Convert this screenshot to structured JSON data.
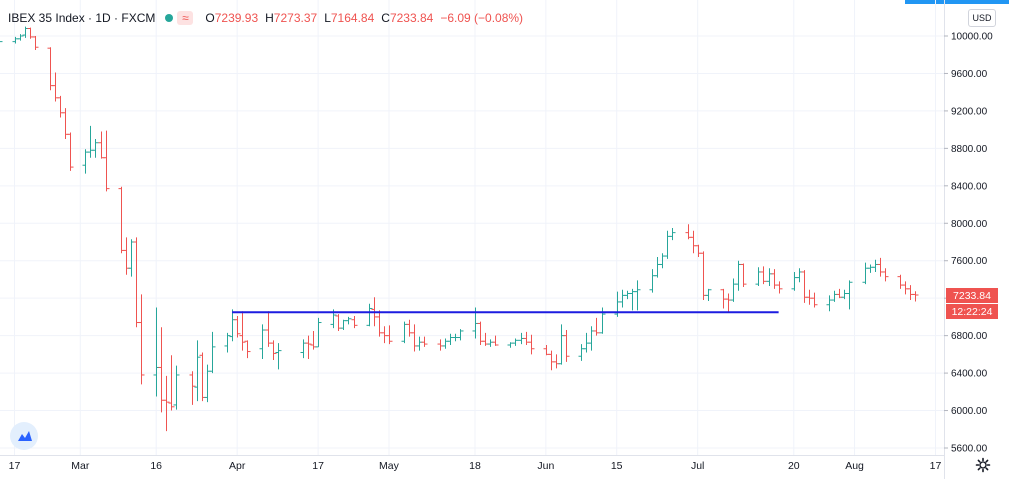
{
  "legend": {
    "symbol": "IBEX 35 Index · 1D · FXCM",
    "open_key": "O",
    "open": "7239.93",
    "high_key": "H",
    "high": "7273.37",
    "low_key": "L",
    "low": "7164.84",
    "close_key": "C",
    "close": "7233.84",
    "change": "−6.09 (−0.08%)",
    "compare_icon": "wavy-lines-icon"
  },
  "currency_button": "USD",
  "price_badge": "7233.84",
  "countdown_badge": "12:22:24",
  "colors": {
    "up": "#26a69a",
    "down": "#ef5350",
    "trendline": "#1c1ce0",
    "accent": "#2196f3",
    "badge": "#ef5350"
  },
  "chart_data": {
    "type": "ohlc",
    "y_ticks": [
      "10000.00",
      "9600.00",
      "9200.00",
      "8800.00",
      "8400.00",
      "8000.00",
      "7600.00",
      "7200.00",
      "6800.00",
      "6400.00",
      "6000.00",
      "5600.00"
    ],
    "x_ticks": [
      "17",
      "Mar",
      "16",
      "Apr",
      "17",
      "May",
      "18",
      "Jun",
      "15",
      "Jul",
      "20",
      "Aug",
      "17"
    ],
    "ylim": [
      5600,
      10000
    ],
    "grid": true,
    "horizontal_line": {
      "price": 7050,
      "from": "Mar 31",
      "to": "Jul 17"
    },
    "bars": [
      {
        "date": "Feb 14",
        "o": 9930,
        "h": 9960,
        "l": 9910,
        "c": 9940
      },
      {
        "date": "Feb 17",
        "o": 9940,
        "h": 9990,
        "l": 9920,
        "c": 9970
      },
      {
        "date": "Feb 18",
        "o": 9970,
        "h": 10020,
        "l": 9950,
        "c": 10000
      },
      {
        "date": "Feb 19",
        "o": 10010,
        "h": 10100,
        "l": 9980,
        "c": 10080
      },
      {
        "date": "Feb 20",
        "o": 10080,
        "h": 10090,
        "l": 9970,
        "c": 9990
      },
      {
        "date": "Feb 21",
        "o": 9990,
        "h": 10000,
        "l": 9850,
        "c": 9880
      },
      {
        "date": "Feb 24",
        "o": 9870,
        "h": 9880,
        "l": 9420,
        "c": 9470
      },
      {
        "date": "Feb 25",
        "o": 9470,
        "h": 9610,
        "l": 9300,
        "c": 9340
      },
      {
        "date": "Feb 26",
        "o": 9340,
        "h": 9360,
        "l": 9130,
        "c": 9180
      },
      {
        "date": "Feb 27",
        "o": 9180,
        "h": 9230,
        "l": 8900,
        "c": 8950
      },
      {
        "date": "Feb 28",
        "o": 8950,
        "h": 8970,
        "l": 8560,
        "c": 8600
      },
      {
        "date": "Mar 2",
        "o": 8620,
        "h": 8790,
        "l": 8530,
        "c": 8760
      },
      {
        "date": "Mar 3",
        "o": 8760,
        "h": 9040,
        "l": 8700,
        "c": 8780
      },
      {
        "date": "Mar 4",
        "o": 8780,
        "h": 8900,
        "l": 8700,
        "c": 8860
      },
      {
        "date": "Mar 5",
        "o": 8860,
        "h": 8980,
        "l": 8690,
        "c": 8700
      },
      {
        "date": "Mar 6",
        "o": 8700,
        "h": 8990,
        "l": 8340,
        "c": 8370
      },
      {
        "date": "Mar 9",
        "o": 8370,
        "h": 8390,
        "l": 7680,
        "c": 7710
      },
      {
        "date": "Mar 10",
        "o": 7710,
        "h": 7850,
        "l": 7450,
        "c": 7520
      },
      {
        "date": "Mar 11",
        "o": 7520,
        "h": 7830,
        "l": 7430,
        "c": 7800
      },
      {
        "date": "Mar 12",
        "o": 7800,
        "h": 7850,
        "l": 6890,
        "c": 6940
      },
      {
        "date": "Mar 13",
        "o": 6940,
        "h": 7240,
        "l": 6280,
        "c": 6380
      },
      {
        "date": "Mar 16",
        "o": 6380,
        "h": 7100,
        "l": 6150,
        "c": 6460
      },
      {
        "date": "Mar 17",
        "o": 6460,
        "h": 6890,
        "l": 5980,
        "c": 6110
      },
      {
        "date": "Mar 18",
        "o": 6110,
        "h": 6370,
        "l": 5780,
        "c": 6090
      },
      {
        "date": "Mar 19",
        "o": 6080,
        "h": 6590,
        "l": 6000,
        "c": 6040
      },
      {
        "date": "Mar 20",
        "o": 6060,
        "h": 6480,
        "l": 6010,
        "c": 6380
      },
      {
        "date": "Mar 23",
        "o": 6380,
        "h": 6420,
        "l": 6060,
        "c": 6260
      },
      {
        "date": "Mar 24",
        "o": 6250,
        "h": 6750,
        "l": 6100,
        "c": 6570
      },
      {
        "date": "Mar 25",
        "o": 6590,
        "h": 6620,
        "l": 6100,
        "c": 6140
      },
      {
        "date": "Mar 26",
        "o": 6140,
        "h": 6490,
        "l": 6090,
        "c": 6420
      },
      {
        "date": "Mar 27",
        "o": 6420,
        "h": 6840,
        "l": 6400,
        "c": 6680
      },
      {
        "date": "Mar 30",
        "o": 6690,
        "h": 6830,
        "l": 6620,
        "c": 6800
      },
      {
        "date": "Mar 31",
        "o": 6790,
        "h": 7080,
        "l": 6740,
        "c": 6970
      },
      {
        "date": "Apr 1",
        "o": 6970,
        "h": 7010,
        "l": 6780,
        "c": 6820
      },
      {
        "date": "Apr 2",
        "o": 6800,
        "h": 7060,
        "l": 6640,
        "c": 6730
      },
      {
        "date": "Apr 3",
        "o": 6740,
        "h": 6750,
        "l": 6560,
        "c": 6630
      },
      {
        "date": "Apr 6",
        "o": 6660,
        "h": 6920,
        "l": 6550,
        "c": 6860
      },
      {
        "date": "Apr 7",
        "o": 6860,
        "h": 7060,
        "l": 6680,
        "c": 6720
      },
      {
        "date": "Apr 8",
        "o": 6720,
        "h": 6750,
        "l": 6540,
        "c": 6610
      },
      {
        "date": "Apr 9",
        "o": 6620,
        "h": 6720,
        "l": 6440,
        "c": 6640
      },
      {
        "date": "Apr 14",
        "o": 6620,
        "h": 6760,
        "l": 6560,
        "c": 6720
      },
      {
        "date": "Apr 15",
        "o": 6720,
        "h": 6800,
        "l": 6550,
        "c": 6710
      },
      {
        "date": "Apr 16",
        "o": 6700,
        "h": 6850,
        "l": 6650,
        "c": 6680
      },
      {
        "date": "Apr 17",
        "o": 6680,
        "h": 6990,
        "l": 6680,
        "c": 6940
      },
      {
        "date": "Apr 20",
        "o": 6920,
        "h": 7080,
        "l": 6880,
        "c": 7020
      },
      {
        "date": "Apr 21",
        "o": 7010,
        "h": 7030,
        "l": 6850,
        "c": 6880
      },
      {
        "date": "Apr 22",
        "o": 6880,
        "h": 6970,
        "l": 6860,
        "c": 6960
      },
      {
        "date": "Apr 23",
        "o": 6960,
        "h": 7000,
        "l": 6920,
        "c": 6980
      },
      {
        "date": "Apr 24",
        "o": 6970,
        "h": 7010,
        "l": 6880,
        "c": 6910
      },
      {
        "date": "Apr 27",
        "o": 6910,
        "h": 7140,
        "l": 6900,
        "c": 7090
      },
      {
        "date": "Apr 28",
        "o": 7080,
        "h": 7210,
        "l": 6900,
        "c": 7000
      },
      {
        "date": "Apr 29",
        "o": 7000,
        "h": 7070,
        "l": 6790,
        "c": 6830
      },
      {
        "date": "Apr 30",
        "o": 6830,
        "h": 6900,
        "l": 6720,
        "c": 6800
      },
      {
        "date": "May 1",
        "o": 6800,
        "h": 6910,
        "l": 6710,
        "c": 6740
      },
      {
        "date": "May 4",
        "o": 6740,
        "h": 6950,
        "l": 6720,
        "c": 6920
      },
      {
        "date": "May 5",
        "o": 6920,
        "h": 6970,
        "l": 6790,
        "c": 6830
      },
      {
        "date": "May 6",
        "o": 6830,
        "h": 6920,
        "l": 6630,
        "c": 6690
      },
      {
        "date": "May 7",
        "o": 6690,
        "h": 6790,
        "l": 6640,
        "c": 6730
      },
      {
        "date": "May 8",
        "o": 6730,
        "h": 6790,
        "l": 6680,
        "c": 6710
      },
      {
        "date": "May 11",
        "o": 6710,
        "h": 6760,
        "l": 6640,
        "c": 6690
      },
      {
        "date": "May 12",
        "o": 6690,
        "h": 6770,
        "l": 6660,
        "c": 6740
      },
      {
        "date": "May 13",
        "o": 6740,
        "h": 6820,
        "l": 6700,
        "c": 6780
      },
      {
        "date": "May 14",
        "o": 6780,
        "h": 6820,
        "l": 6740,
        "c": 6780
      },
      {
        "date": "May 15",
        "o": 6780,
        "h": 6870,
        "l": 6750,
        "c": 6850
      },
      {
        "date": "May 18",
        "o": 6850,
        "h": 7100,
        "l": 6770,
        "c": 6930
      },
      {
        "date": "May 19",
        "o": 6930,
        "h": 6950,
        "l": 6700,
        "c": 6740
      },
      {
        "date": "May 20",
        "o": 6740,
        "h": 6830,
        "l": 6690,
        "c": 6710
      },
      {
        "date": "May 21",
        "o": 6710,
        "h": 6760,
        "l": 6680,
        "c": 6730
      },
      {
        "date": "May 22",
        "o": 6730,
        "h": 6800,
        "l": 6690,
        "c": 6700
      },
      {
        "date": "May 25",
        "o": 6700,
        "h": 6730,
        "l": 6670,
        "c": 6720
      },
      {
        "date": "May 26",
        "o": 6720,
        "h": 6770,
        "l": 6690,
        "c": 6750
      },
      {
        "date": "May 27",
        "o": 6750,
        "h": 6830,
        "l": 6710,
        "c": 6770
      },
      {
        "date": "May 28",
        "o": 6770,
        "h": 6840,
        "l": 6700,
        "c": 6730
      },
      {
        "date": "May 29",
        "o": 6730,
        "h": 6810,
        "l": 6600,
        "c": 6660
      },
      {
        "date": "Jun 1",
        "o": 6660,
        "h": 6700,
        "l": 6590,
        "c": 6600
      },
      {
        "date": "Jun 2",
        "o": 6600,
        "h": 6640,
        "l": 6430,
        "c": 6520
      },
      {
        "date": "Jun 3",
        "o": 6520,
        "h": 6600,
        "l": 6450,
        "c": 6500
      },
      {
        "date": "Jun 4",
        "o": 6500,
        "h": 6920,
        "l": 6490,
        "c": 6800
      },
      {
        "date": "Jun 5",
        "o": 6800,
        "h": 6860,
        "l": 6520,
        "c": 6580
      },
      {
        "date": "Jun 8",
        "o": 6580,
        "h": 6710,
        "l": 6530,
        "c": 6660
      },
      {
        "date": "Jun 9",
        "o": 6660,
        "h": 6830,
        "l": 6620,
        "c": 6720
      },
      {
        "date": "Jun 10",
        "o": 6720,
        "h": 6900,
        "l": 6640,
        "c": 6850
      },
      {
        "date": "Jun 11",
        "o": 6850,
        "h": 6990,
        "l": 6800,
        "c": 6830
      },
      {
        "date": "Jun 12",
        "o": 6830,
        "h": 7100,
        "l": 6820,
        "c": 7030
      },
      {
        "date": "Jun 15",
        "o": 7030,
        "h": 7270,
        "l": 7000,
        "c": 7160
      },
      {
        "date": "Jun 16",
        "o": 7160,
        "h": 7290,
        "l": 7100,
        "c": 7230
      },
      {
        "date": "Jun 17",
        "o": 7230,
        "h": 7280,
        "l": 7190,
        "c": 7250
      },
      {
        "date": "Jun 18",
        "o": 7250,
        "h": 7300,
        "l": 7070,
        "c": 7270
      },
      {
        "date": "Jun 19",
        "o": 7270,
        "h": 7390,
        "l": 7070,
        "c": 7290
      },
      {
        "date": "Jun 22",
        "o": 7290,
        "h": 7510,
        "l": 7260,
        "c": 7440
      },
      {
        "date": "Jun 23",
        "o": 7440,
        "h": 7640,
        "l": 7420,
        "c": 7560
      },
      {
        "date": "Jun 24",
        "o": 7560,
        "h": 7680,
        "l": 7520,
        "c": 7650
      },
      {
        "date": "Jun 25",
        "o": 7650,
        "h": 7920,
        "l": 7620,
        "c": 7860
      },
      {
        "date": "Jun 26",
        "o": 7860,
        "h": 7950,
        "l": 7820,
        "c": 7900
      },
      {
        "date": "Jun 29",
        "o": 7900,
        "h": 7990,
        "l": 7830,
        "c": 7850
      },
      {
        "date": "Jun 30",
        "o": 7850,
        "h": 7920,
        "l": 7680,
        "c": 7760
      },
      {
        "date": "Jul 1",
        "o": 7760,
        "h": 7770,
        "l": 7640,
        "c": 7680
      },
      {
        "date": "Jul 2",
        "o": 7680,
        "h": 7700,
        "l": 7180,
        "c": 7230
      },
      {
        "date": "Jul 3",
        "o": 7230,
        "h": 7300,
        "l": 7170,
        "c": 7290
      },
      {
        "date": "Jul 6",
        "o": 7290,
        "h": 7300,
        "l": 7090,
        "c": 7190
      },
      {
        "date": "Jul 7",
        "o": 7190,
        "h": 7250,
        "l": 7050,
        "c": 7180
      },
      {
        "date": "Jul 8",
        "o": 7180,
        "h": 7410,
        "l": 7160,
        "c": 7350
      },
      {
        "date": "Jul 9",
        "o": 7350,
        "h": 7600,
        "l": 7280,
        "c": 7560
      },
      {
        "date": "Jul 10",
        "o": 7560,
        "h": 7570,
        "l": 7320,
        "c": 7350
      },
      {
        "date": "Jul 13",
        "o": 7350,
        "h": 7530,
        "l": 7330,
        "c": 7480
      },
      {
        "date": "Jul 14",
        "o": 7480,
        "h": 7540,
        "l": 7350,
        "c": 7380
      },
      {
        "date": "Jul 15",
        "o": 7380,
        "h": 7520,
        "l": 7330,
        "c": 7460
      },
      {
        "date": "Jul 16",
        "o": 7460,
        "h": 7510,
        "l": 7300,
        "c": 7340
      },
      {
        "date": "Jul 17",
        "o": 7340,
        "h": 7380,
        "l": 7250,
        "c": 7300
      },
      {
        "date": "Jul 20",
        "o": 7300,
        "h": 7480,
        "l": 7280,
        "c": 7420
      },
      {
        "date": "Jul 21",
        "o": 7420,
        "h": 7520,
        "l": 7370,
        "c": 7480
      },
      {
        "date": "Jul 22",
        "o": 7480,
        "h": 7500,
        "l": 7150,
        "c": 7210
      },
      {
        "date": "Jul 23",
        "o": 7210,
        "h": 7290,
        "l": 7130,
        "c": 7200
      },
      {
        "date": "Jul 24",
        "o": 7200,
        "h": 7260,
        "l": 7100,
        "c": 7130
      },
      {
        "date": "Jul 27",
        "o": 7130,
        "h": 7230,
        "l": 7060,
        "c": 7180
      },
      {
        "date": "Jul 28",
        "o": 7180,
        "h": 7280,
        "l": 7160,
        "c": 7240
      },
      {
        "date": "Jul 29",
        "o": 7240,
        "h": 7300,
        "l": 7200,
        "c": 7210
      },
      {
        "date": "Jul 30",
        "o": 7210,
        "h": 7290,
        "l": 7190,
        "c": 7250
      },
      {
        "date": "Jul 31",
        "o": 7250,
        "h": 7390,
        "l": 7080,
        "c": 7370
      },
      {
        "date": "Aug 3",
        "o": 7370,
        "h": 7580,
        "l": 7350,
        "c": 7520
      },
      {
        "date": "Aug 4",
        "o": 7520,
        "h": 7560,
        "l": 7470,
        "c": 7530
      },
      {
        "date": "Aug 5",
        "o": 7530,
        "h": 7610,
        "l": 7480,
        "c": 7560
      },
      {
        "date": "Aug 6",
        "o": 7560,
        "h": 7630,
        "l": 7430,
        "c": 7480
      },
      {
        "date": "Aug 7",
        "o": 7480,
        "h": 7520,
        "l": 7380,
        "c": 7430
      },
      {
        "date": "Aug 10",
        "o": 7430,
        "h": 7450,
        "l": 7300,
        "c": 7340
      },
      {
        "date": "Aug 11",
        "o": 7340,
        "h": 7380,
        "l": 7240,
        "c": 7300
      },
      {
        "date": "Aug 12",
        "o": 7300,
        "h": 7340,
        "l": 7180,
        "c": 7240
      },
      {
        "date": "Aug 13",
        "o": 7239.93,
        "h": 7273.37,
        "l": 7164.84,
        "c": 7233.84
      }
    ]
  }
}
